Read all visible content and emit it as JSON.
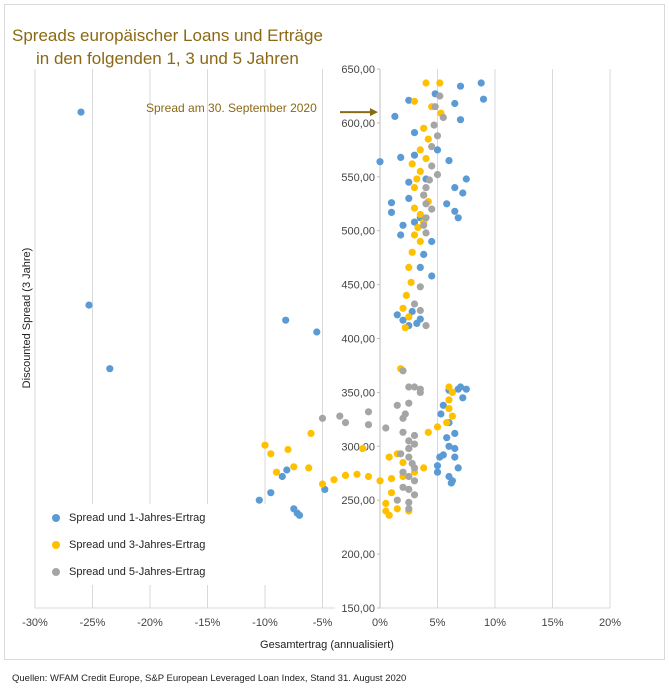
{
  "title": {
    "line1": "Spreads europäischer Loans und Erträge",
    "line2": "in den folgenden 1, 3 und 5 Jahren"
  },
  "source": "Quellen: WFAM Credit Europe, S&P European Leveraged Loan Index, Stand 31. August 2020",
  "annotation": "Spread am 30. September 2020",
  "chart_data": {
    "type": "scatter",
    "title": "Spreads europäischer Loans und Erträge in den folgenden 1, 3 und 5 Jahren",
    "xlabel": "Gesamtertrag (annualisiert)",
    "ylabel": "Discounted Spread (3 Jahre)",
    "xlim": [
      -30,
      20
    ],
    "ylim": [
      150,
      650
    ],
    "x_ticks": [
      "-30%",
      "-25%",
      "-20%",
      "-15%",
      "-10%",
      "-5%",
      "0%",
      "5%",
      "10%",
      "15%",
      "20%"
    ],
    "y_ticks": [
      "150,00",
      "200,00",
      "250,00",
      "300,00",
      "350,00",
      "400,00",
      "450,00",
      "500,00",
      "550,00",
      "600,00",
      "650,00"
    ],
    "grid": "vertical",
    "legend_position": "bottom-left",
    "annotation": {
      "text": "Spread am 30. September 2020",
      "y": 610
    },
    "colors": {
      "series1": "#5b9bd5",
      "series3": "#ffc000",
      "series5": "#a5a5a5",
      "annotation": "#8b6914"
    },
    "series": [
      {
        "name": "Spread und 1-Jahres-Ertrag",
        "color": "#5b9bd5",
        "points": [
          [
            -26.0,
            610
          ],
          [
            -25.3,
            431
          ],
          [
            -23.5,
            372
          ],
          [
            -8.2,
            417
          ],
          [
            -5.5,
            406
          ],
          [
            -8.1,
            278
          ],
          [
            -8.5,
            272
          ],
          [
            -7.5,
            242
          ],
          [
            -7.2,
            238
          ],
          [
            -7.0,
            236
          ],
          [
            -9.5,
            257
          ],
          [
            -10.5,
            250
          ],
          [
            -4.8,
            260
          ],
          [
            8.8,
            637
          ],
          [
            7.0,
            634
          ],
          [
            9.0,
            622
          ],
          [
            4.8,
            627
          ],
          [
            2.5,
            621
          ],
          [
            6.5,
            618
          ],
          [
            1.3,
            606
          ],
          [
            7.0,
            603
          ],
          [
            3.0,
            591
          ],
          [
            0.0,
            564
          ],
          [
            1.8,
            568
          ],
          [
            3.0,
            570
          ],
          [
            5.0,
            575
          ],
          [
            6.0,
            565
          ],
          [
            7.5,
            548
          ],
          [
            4.0,
            548
          ],
          [
            2.5,
            545
          ],
          [
            6.5,
            540
          ],
          [
            7.2,
            535
          ],
          [
            2.5,
            530
          ],
          [
            1.0,
            526
          ],
          [
            5.8,
            525
          ],
          [
            6.5,
            518
          ],
          [
            6.8,
            512
          ],
          [
            1.0,
            517
          ],
          [
            3.5,
            512
          ],
          [
            2.0,
            505
          ],
          [
            3.0,
            508
          ],
          [
            1.8,
            496
          ],
          [
            4.5,
            490
          ],
          [
            3.8,
            478
          ],
          [
            3.5,
            466
          ],
          [
            4.5,
            458
          ],
          [
            1.5,
            422
          ],
          [
            2.0,
            417
          ],
          [
            2.5,
            412
          ],
          [
            3.2,
            414
          ],
          [
            2.8,
            425
          ],
          [
            3.5,
            418
          ],
          [
            5.3,
            330
          ],
          [
            5.5,
            338
          ],
          [
            6.0,
            322
          ],
          [
            6.5,
            312
          ],
          [
            5.8,
            308
          ],
          [
            6.0,
            300
          ],
          [
            6.5,
            298
          ],
          [
            5.5,
            292
          ],
          [
            5.2,
            290
          ],
          [
            5.0,
            282
          ],
          [
            5.0,
            276
          ],
          [
            6.0,
            272
          ],
          [
            6.2,
            266
          ],
          [
            6.3,
            268
          ],
          [
            6.8,
            280
          ],
          [
            6.5,
            290
          ],
          [
            6.8,
            353
          ],
          [
            7.0,
            355
          ],
          [
            7.5,
            353
          ],
          [
            7.2,
            345
          ],
          [
            6.0,
            352
          ]
        ]
      },
      {
        "name": "Spread und 3-Jahres-Ertrag",
        "color": "#ffc000",
        "points": [
          [
            4.0,
            637
          ],
          [
            5.2,
            637
          ],
          [
            3.0,
            620
          ],
          [
            4.5,
            615
          ],
          [
            5.3,
            609
          ],
          [
            3.8,
            595
          ],
          [
            4.2,
            585
          ],
          [
            3.5,
            575
          ],
          [
            4.0,
            567
          ],
          [
            2.8,
            562
          ],
          [
            3.5,
            555
          ],
          [
            3.2,
            548
          ],
          [
            3.0,
            540
          ],
          [
            3.8,
            533
          ],
          [
            4.2,
            527
          ],
          [
            3.0,
            521
          ],
          [
            3.5,
            515
          ],
          [
            3.8,
            508
          ],
          [
            3.3,
            503
          ],
          [
            3.0,
            496
          ],
          [
            3.5,
            490
          ],
          [
            2.8,
            480
          ],
          [
            2.5,
            466
          ],
          [
            2.7,
            452
          ],
          [
            2.3,
            440
          ],
          [
            2.0,
            428
          ],
          [
            2.5,
            420
          ],
          [
            2.2,
            410
          ],
          [
            1.8,
            372
          ],
          [
            6.0,
            355
          ],
          [
            6.3,
            350
          ],
          [
            6.0,
            343
          ],
          [
            6.0,
            335
          ],
          [
            6.3,
            328
          ],
          [
            5.8,
            322
          ],
          [
            5.0,
            318
          ],
          [
            4.2,
            313
          ],
          [
            -10.0,
            301
          ],
          [
            -8.0,
            297
          ],
          [
            -9.5,
            293
          ],
          [
            -6.0,
            312
          ],
          [
            -7.5,
            281
          ],
          [
            -9.0,
            276
          ],
          [
            -6.2,
            280
          ],
          [
            -5.0,
            265
          ],
          [
            -4.0,
            269
          ],
          [
            -3.0,
            273
          ],
          [
            -2.0,
            274
          ],
          [
            -1.0,
            272
          ],
          [
            0.0,
            268
          ],
          [
            1.0,
            270
          ],
          [
            2.0,
            272
          ],
          [
            3.0,
            276
          ],
          [
            3.8,
            280
          ],
          [
            -1.5,
            298
          ],
          [
            0.8,
            290
          ],
          [
            2.0,
            285
          ],
          [
            1.5,
            293
          ],
          [
            1.0,
            257
          ],
          [
            0.5,
            247
          ],
          [
            0.5,
            240
          ],
          [
            0.8,
            236
          ],
          [
            1.5,
            242
          ],
          [
            2.5,
            240
          ]
        ]
      },
      {
        "name": "Spread und 5-Jahres-Ertrag",
        "color": "#a5a5a5",
        "points": [
          [
            5.2,
            625
          ],
          [
            4.8,
            615
          ],
          [
            5.5,
            605
          ],
          [
            4.7,
            598
          ],
          [
            5.0,
            588
          ],
          [
            4.5,
            578
          ],
          [
            4.5,
            560
          ],
          [
            5.0,
            552
          ],
          [
            4.3,
            547
          ],
          [
            4.0,
            540
          ],
          [
            3.8,
            533
          ],
          [
            4.0,
            525
          ],
          [
            4.5,
            520
          ],
          [
            4.0,
            512
          ],
          [
            3.8,
            505
          ],
          [
            4.0,
            498
          ],
          [
            3.5,
            448
          ],
          [
            3.0,
            432
          ],
          [
            3.5,
            426
          ],
          [
            4.0,
            412
          ],
          [
            2.0,
            370
          ],
          [
            2.5,
            355
          ],
          [
            3.0,
            355
          ],
          [
            3.5,
            353
          ],
          [
            3.5,
            350
          ],
          [
            2.5,
            340
          ],
          [
            1.5,
            338
          ],
          [
            -1.0,
            332
          ],
          [
            -3.5,
            328
          ],
          [
            -5.0,
            326
          ],
          [
            -3.0,
            322
          ],
          [
            -1.0,
            320
          ],
          [
            0.5,
            317
          ],
          [
            2.0,
            313
          ],
          [
            2.5,
            305
          ],
          [
            3.0,
            302
          ],
          [
            2.5,
            298
          ],
          [
            1.8,
            293
          ],
          [
            2.5,
            290
          ],
          [
            2.8,
            284
          ],
          [
            3.0,
            280
          ],
          [
            2.0,
            276
          ],
          [
            2.5,
            272
          ],
          [
            3.0,
            268
          ],
          [
            2.5,
            260
          ],
          [
            3.0,
            255
          ],
          [
            2.5,
            248
          ],
          [
            2.5,
            242
          ],
          [
            1.5,
            250
          ],
          [
            2.0,
            262
          ],
          [
            2.5,
            298
          ],
          [
            3.0,
            310
          ],
          [
            2.0,
            326
          ],
          [
            2.2,
            330
          ]
        ]
      }
    ]
  }
}
